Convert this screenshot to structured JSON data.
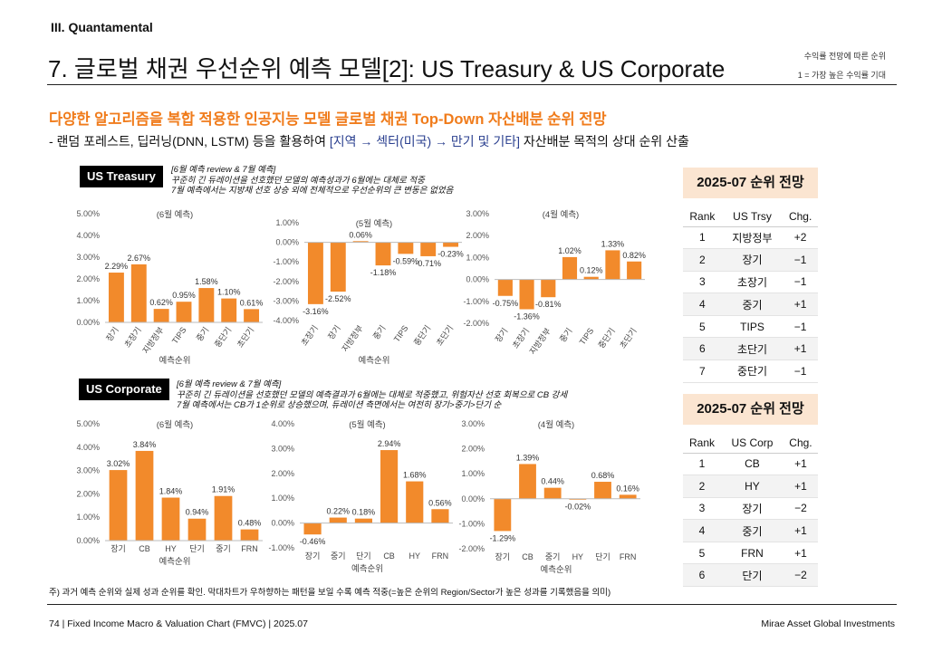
{
  "header": {
    "section": "III. Quantamental",
    "title": "7. 글로벌 채권 우선순위 예측 모델[2]: US Treasury & US Corporate",
    "note_line1": "수익률 전망에 따른 순위",
    "note_line2": "1 = 가장 높은 수익률 기대"
  },
  "intro": {
    "subtitle": "다양한 알고리즘을 복합 적용한 인공지능 모델 글로벌 채권 Top-Down 자산배분 순위 전망",
    "desc_prefix": "-  랜덤 포레스트, 딥러닝(DNN, LSTM) 등을 활용하여 ",
    "desc_highlight": "[지역 → 섹터(미국) → 만기 및 기타]",
    "desc_suffix": " 자산배분 목적의 상대 순위 산출"
  },
  "treasury": {
    "badge": "US Treasury",
    "comment_line1": "[6월 예측 review & 7월 예측]",
    "comment_line2": "꾸준히 긴 듀레이션을 선호했던 모델의 예측성과가 6월에는 대체로 적중",
    "comment_line3": "7월 예측에서는 지방채 선호 상승 외에 전체적으로 우선순위의 큰 변동은 없었음"
  },
  "corporate": {
    "badge": "US Corporate",
    "comment_line1": "[6월 예측 review & 7월 예측]",
    "comment_line2": "꾸준히 긴 듀레이션을 선호했던 모델의 예측결과가 6월에는 대체로 적중했고, 위험자산 선호 회복으로 CB 강세",
    "comment_line3": "7월 예측에서는 CB가 1순위로 상승했으며, 듀레이션 측면에서는 여전히 장기>중기>단기 순"
  },
  "chart_data": [
    {
      "type": "bar",
      "title": "(6월 예측)",
      "xlabel": "예측순위",
      "categories": [
        "장기",
        "초장기",
        "지방정부",
        "TIPS",
        "중기",
        "중단기",
        "초단기"
      ],
      "values": [
        2.29,
        2.67,
        0.62,
        0.95,
        1.58,
        1.1,
        0.61
      ],
      "labels": [
        "2.29%",
        "2.67%",
        "0.62%",
        "0.95%",
        "1.58%",
        "1.10%",
        "0.61%"
      ],
      "ylim": [
        0,
        5
      ],
      "ticks": [
        "0.00%",
        "1.00%",
        "2.00%",
        "3.00%",
        "4.00%",
        "5.00%"
      ],
      "color": "#f28a2b"
    },
    {
      "type": "bar",
      "title": "(5월 예측)",
      "xlabel": "예측순위",
      "categories": [
        "초장기",
        "장기",
        "지방정부",
        "중기",
        "TIPS",
        "중단기",
        "초단기"
      ],
      "values": [
        -3.16,
        -2.52,
        0.06,
        -1.18,
        -0.59,
        -0.71,
        -0.23
      ],
      "labels": [
        "-3.16%",
        "-2.52%",
        "0.06%",
        "-1.18%",
        "-0.59%",
        "-0.71%",
        "-0.23%"
      ],
      "ylim": [
        -4,
        1
      ],
      "ticks": [
        "-4.00%",
        "-3.00%",
        "-2.00%",
        "-1.00%",
        "0.00%",
        "1.00%"
      ],
      "color": "#f28a2b"
    },
    {
      "type": "bar",
      "title": "(4월 예측)",
      "xlabel": "",
      "categories": [
        "장기",
        "초장기",
        "지방정부",
        "중기",
        "TIPS",
        "중단기",
        "초단기"
      ],
      "values": [
        -0.75,
        -1.36,
        -0.81,
        1.02,
        0.12,
        1.33,
        0.82
      ],
      "labels": [
        "-0.75%",
        "-1.36%",
        "-0.81%",
        "1.02%",
        "0.12%",
        "1.33%",
        "0.82%"
      ],
      "ylim": [
        -2,
        3
      ],
      "ticks": [
        "-2.00%",
        "-1.00%",
        "0.00%",
        "1.00%",
        "2.00%",
        "3.00%"
      ],
      "color": "#f28a2b"
    },
    {
      "type": "bar",
      "title": "(6월 예측)",
      "xlabel": "예측순위",
      "categories": [
        "장기",
        "CB",
        "HY",
        "단기",
        "중기",
        "FRN"
      ],
      "values": [
        3.02,
        3.84,
        1.84,
        0.94,
        1.91,
        0.48
      ],
      "labels": [
        "3.02%",
        "3.84%",
        "1.84%",
        "0.94%",
        "1.91%",
        "0.48%"
      ],
      "ylim": [
        0,
        5
      ],
      "ticks": [
        "0.00%",
        "1.00%",
        "2.00%",
        "3.00%",
        "4.00%",
        "5.00%"
      ],
      "color": "#f28a2b"
    },
    {
      "type": "bar",
      "title": "(5월 예측)",
      "xlabel": "예측순위",
      "categories": [
        "장기",
        "중기",
        "단기",
        "CB",
        "HY",
        "FRN"
      ],
      "values": [
        -0.46,
        0.22,
        0.18,
        2.94,
        1.68,
        0.56
      ],
      "labels": [
        "-0.46%",
        "0.22%",
        "0.18%",
        "2.94%",
        "1.68%",
        "0.56%"
      ],
      "ylim": [
        -1,
        4
      ],
      "ticks": [
        "-1.00%",
        "0.00%",
        "1.00%",
        "2.00%",
        "3.00%",
        "4.00%"
      ],
      "color": "#f28a2b"
    },
    {
      "type": "bar",
      "title": "(4월 예측)",
      "xlabel": "예측순위",
      "categories": [
        "장기",
        "CB",
        "중기",
        "HY",
        "단기",
        "FRN"
      ],
      "values": [
        -1.29,
        1.39,
        0.44,
        -0.02,
        0.68,
        0.16
      ],
      "labels": [
        "-1.29%",
        "1.39%",
        "0.44%",
        "-0.02%",
        "0.68%",
        "0.16%"
      ],
      "ylim": [
        -2,
        3
      ],
      "ticks": [
        "-2.00%",
        "-1.00%",
        "0.00%",
        "1.00%",
        "2.00%",
        "3.00%"
      ],
      "color": "#f28a2b"
    }
  ],
  "rank_treasury": {
    "title": "2025-07 순위 전망",
    "headers": [
      "Rank",
      "US Trsy",
      "Chg."
    ],
    "rows": [
      [
        "1",
        "지방정부",
        "+2"
      ],
      [
        "2",
        "장기",
        "−1"
      ],
      [
        "3",
        "초장기",
        "−1"
      ],
      [
        "4",
        "중기",
        "+1"
      ],
      [
        "5",
        "TIPS",
        "−1"
      ],
      [
        "6",
        "초단기",
        "+1"
      ],
      [
        "7",
        "중단기",
        "−1"
      ]
    ]
  },
  "rank_corporate": {
    "title": "2025-07 순위 전망",
    "headers": [
      "Rank",
      "US Corp",
      "Chg."
    ],
    "rows": [
      [
        "1",
        "CB",
        "+1"
      ],
      [
        "2",
        "HY",
        "+1"
      ],
      [
        "3",
        "장기",
        "−2"
      ],
      [
        "4",
        "중기",
        "+1"
      ],
      [
        "5",
        "FRN",
        "+1"
      ],
      [
        "6",
        "단기",
        "−2"
      ]
    ]
  },
  "footnote": "주) 과거 예측 순위와 실제 성과 순위를 확인. 막대차트가 우하향하는 패턴을 보일 수록 예측 적중(=높은 순위의 Region/Sector가 높은 성과를 기록했음을 의미)",
  "footer": {
    "left": "74 | Fixed Income Macro & Valuation Chart (FMVC) | 2025.07",
    "right": "Mirae Asset Global Investments"
  }
}
